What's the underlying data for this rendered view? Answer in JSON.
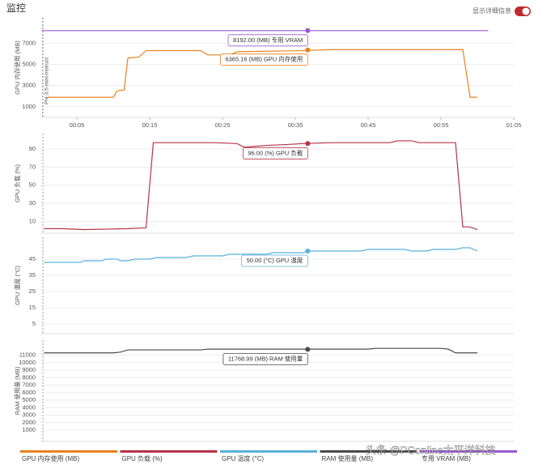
{
  "header": {
    "title": "监控",
    "toggle_label": "显示详细信息"
  },
  "watermark": "头条 @PConline太平洋科技",
  "chart_data": [
    {
      "type": "line",
      "ylabel": "GPU 内存使用 (MB)",
      "grid": true,
      "xlim": [
        0,
        65
      ],
      "ylim": [
        0,
        9400
      ],
      "yticks": [
        1000,
        3000,
        5000,
        7000
      ],
      "xticks": [
        {
          "value": 5,
          "label": "00:05"
        },
        {
          "value": 15,
          "label": "00:15"
        },
        {
          "value": 25,
          "label": "00:25"
        },
        {
          "value": 35,
          "label": "00:35"
        },
        {
          "value": 45,
          "label": "00:45"
        },
        {
          "value": 55,
          "label": "00:55"
        },
        {
          "value": 65,
          "label": "01:05"
        }
      ],
      "marker": {
        "label": "Phi-3.5-mini-instruct",
        "x": 0.3
      },
      "x": [
        0.2,
        1,
        10,
        10.5,
        11.5,
        12,
        13.5,
        14.5,
        22,
        23,
        26,
        27,
        36,
        40,
        50,
        58,
        59,
        60,
        61.5
      ],
      "series": [
        {
          "name": "GPU 内存使用 (MB)",
          "color": "#e8821e",
          "values": [
            null,
            1900,
            1900,
            2500,
            2600,
            5600,
            5700,
            6300,
            6300,
            5900,
            5900,
            6200,
            6300,
            6400,
            6400,
            6400,
            1900,
            1900,
            null
          ]
        },
        {
          "name": "专用 VRAM (MB)",
          "color": "#9b59d0",
          "values": [
            8192,
            8192,
            8192,
            8192,
            8192,
            8192,
            8192,
            8192,
            8192,
            8192,
            8192,
            8192,
            8192,
            8192,
            8192,
            8192,
            8192,
            8192,
            8192
          ]
        }
      ],
      "annotations": [
        {
          "label": "8192.00 (MB) 专用 VRAM",
          "x": 36.7,
          "value": 8192,
          "color": "#9b59d0"
        },
        {
          "label": "6365.16 (MB) GPU 内存使用",
          "x": 36.7,
          "value": 6365.16,
          "color": "#e8821e"
        }
      ]
    },
    {
      "type": "line",
      "ylabel": "GPU 负载 (%)",
      "grid": true,
      "xlim": [
        0,
        65
      ],
      "ylim": [
        -3,
        107
      ],
      "yticks": [
        10,
        30,
        50,
        70,
        90
      ],
      "x": [
        0.5,
        3,
        6,
        12,
        14.5,
        15.5,
        24,
        27,
        28,
        31,
        34,
        36,
        40,
        48,
        49,
        51,
        52,
        57,
        58,
        59,
        60
      ],
      "series": [
        {
          "name": "GPU 负载 (%)",
          "color": "#b5334a",
          "values": [
            2,
            2,
            1,
            2,
            3,
            97,
            97,
            96,
            92,
            94,
            95,
            96,
            97,
            97,
            99,
            99,
            97,
            97,
            4,
            4,
            1
          ]
        }
      ],
      "annotations": [
        {
          "label": "96.00 (%) GPU 负载",
          "x": 36.7,
          "value": 96,
          "color": "#b5334a"
        }
      ]
    },
    {
      "type": "line",
      "ylabel": "GPU 温度 (°C)",
      "grid": true,
      "xlim": [
        0,
        65
      ],
      "ylim": [
        -1,
        58.5
      ],
      "yticks": [
        5,
        15,
        25,
        35,
        45
      ],
      "x": [
        0.5,
        5.5,
        6,
        8.5,
        9,
        10.5,
        11,
        12,
        13,
        15,
        16,
        20,
        21,
        25,
        26,
        31,
        32,
        36,
        37,
        44,
        45,
        50,
        51,
        53,
        54,
        57,
        58,
        59,
        60
      ],
      "series": [
        {
          "name": "GPU 温度 (°C)",
          "color": "#5bb0dc",
          "values": [
            43,
            43,
            44,
            44,
            45,
            45,
            44,
            44,
            45,
            45,
            46,
            46,
            47,
            47,
            48,
            48,
            49,
            49,
            50,
            50,
            51,
            51,
            50,
            50,
            51,
            51,
            52,
            52,
            50
          ]
        }
      ],
      "annotations": [
        {
          "label": "50.00 (°C) GPU 温度",
          "x": 36.7,
          "value": 50,
          "color": "#5bb0dc"
        }
      ]
    },
    {
      "type": "line",
      "ylabel": "RAM 使用量 (MB)",
      "grid": true,
      "xlim": [
        0,
        65
      ],
      "ylim": [
        -500,
        13000
      ],
      "yticks": [
        1000,
        2000,
        3000,
        4000,
        5000,
        6000,
        7000,
        8000,
        9000,
        10000,
        11000
      ],
      "x": [
        0.5,
        10,
        11,
        12,
        22,
        23,
        45,
        46,
        55,
        56,
        57,
        60
      ],
      "series": [
        {
          "name": "RAM 使用量 (MB)",
          "color": "#4a4a4a",
          "values": [
            11300,
            11300,
            11400,
            11700,
            11700,
            11800,
            11800,
            11900,
            11900,
            11800,
            11300,
            11300
          ]
        }
      ],
      "annotations": [
        {
          "label": "11768.99 (MB) RAM 使用量",
          "x": 36.7,
          "value": 11768.99,
          "color": "#4a4a4a"
        }
      ]
    }
  ]
}
